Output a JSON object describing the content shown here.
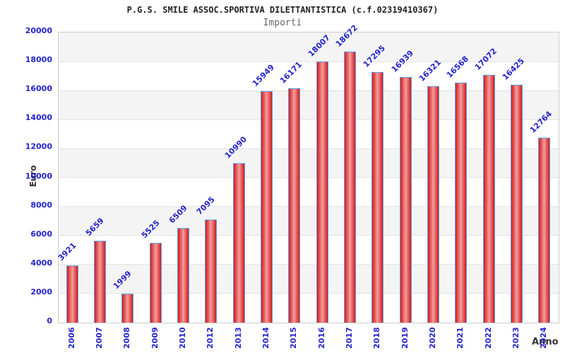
{
  "chart_data": {
    "type": "bar",
    "title": "P.G.S. SMILE ASSOC.SPORTIVA DILETTANTISTICA (c.f.02319410367)",
    "subtitle": "Importi",
    "xlabel": "Anno",
    "ylabel": "Euro",
    "categories": [
      "2006",
      "2007",
      "2008",
      "2009",
      "2010",
      "2012",
      "2013",
      "2014",
      "2015",
      "2016",
      "2017",
      "2018",
      "2019",
      "2020",
      "2021",
      "2022",
      "2023",
      "2024"
    ],
    "values": [
      3921,
      5659,
      1999,
      5525,
      6509,
      7095,
      10990,
      15949,
      16171,
      18007,
      18672,
      17295,
      16939,
      16321,
      16568,
      17072,
      16425,
      12764
    ],
    "ylim": [
      0,
      20000
    ],
    "ytick_step": 2000,
    "yticks": [
      0,
      2000,
      4000,
      6000,
      8000,
      10000,
      12000,
      14000,
      16000,
      18000,
      20000
    ],
    "grid": true,
    "legend": false,
    "note": "year 2011 has no bar",
    "colors": {
      "label_blue": "#2525cc",
      "title_color": "#222222",
      "subtitle_color": "#666666",
      "axis_label_color": "#333333",
      "band_gray": "#f4f4f4",
      "band_white": "#ffffff",
      "grid_line": "#e3e3e3",
      "plot_border": "#cccccc",
      "bar_edge": "#cf1d1d",
      "bar_mid": "#e14848",
      "bar_center": "#f29e9e",
      "bar_border": "#5f9fea"
    }
  }
}
